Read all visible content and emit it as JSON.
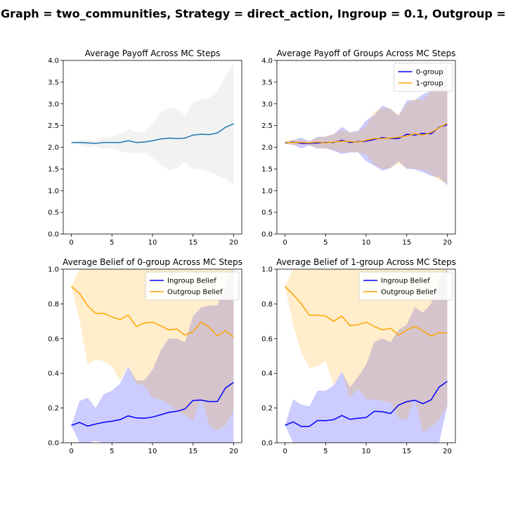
{
  "figure": {
    "suptitle": "Graph = two_communities, Strategy = direct_action, Ingroup = 0.1, Outgroup ="
  },
  "chart_data": [
    {
      "type": "line",
      "title": "Average Payoff Across MC Steps",
      "xlim": [
        -1,
        21
      ],
      "ylim": [
        0.0,
        4.0
      ],
      "xticks": [
        0,
        5,
        10,
        15,
        20
      ],
      "yticks": [
        "0.0",
        "0.5",
        "1.0",
        "1.5",
        "2.0",
        "2.5",
        "3.0",
        "3.5",
        "4.0"
      ],
      "x": [
        0,
        1,
        2,
        3,
        4,
        5,
        6,
        7,
        8,
        9,
        10,
        11,
        12,
        13,
        14,
        15,
        16,
        17,
        18,
        19,
        20
      ],
      "series": [
        {
          "name": "",
          "color": "#1f77b4",
          "band_color": "#bdbdbd",
          "values": [
            2.11,
            2.11,
            2.1,
            2.09,
            2.11,
            2.11,
            2.11,
            2.15,
            2.11,
            2.12,
            2.15,
            2.19,
            2.21,
            2.2,
            2.21,
            2.28,
            2.3,
            2.29,
            2.33,
            2.46,
            2.54
          ],
          "upper": [
            2.12,
            2.16,
            2.18,
            2.14,
            2.24,
            2.24,
            2.3,
            2.42,
            2.34,
            2.37,
            2.54,
            2.78,
            2.93,
            2.89,
            2.73,
            3.04,
            3.1,
            3.14,
            3.3,
            3.65,
            3.93
          ],
          "lower": [
            2.1,
            2.05,
            2.0,
            2.03,
            1.97,
            1.97,
            1.92,
            1.86,
            1.88,
            1.87,
            1.76,
            1.6,
            1.47,
            1.52,
            1.66,
            1.5,
            1.49,
            1.44,
            1.35,
            1.27,
            1.14
          ]
        }
      ],
      "legend": null
    },
    {
      "type": "line",
      "title": "Average Payoff of Groups Across MC Steps",
      "xlim": [
        -1,
        21
      ],
      "ylim": [
        0.0,
        4.0
      ],
      "xticks": [
        0,
        5,
        10,
        15,
        20
      ],
      "yticks": [
        "0.0",
        "0.5",
        "1.0",
        "1.5",
        "2.0",
        "2.5",
        "3.0",
        "3.5",
        "4.0"
      ],
      "x": [
        0,
        1,
        2,
        3,
        4,
        5,
        6,
        7,
        8,
        9,
        10,
        11,
        12,
        13,
        14,
        15,
        16,
        17,
        18,
        19,
        20
      ],
      "series": [
        {
          "name": "0-group",
          "color": "#0000ff",
          "band_color": "#0000ff",
          "values": [
            2.1,
            2.12,
            2.09,
            2.09,
            2.1,
            2.11,
            2.11,
            2.16,
            2.11,
            2.13,
            2.14,
            2.18,
            2.22,
            2.2,
            2.2,
            2.3,
            2.28,
            2.32,
            2.31,
            2.46,
            2.52
          ],
          "upper": [
            2.12,
            2.16,
            2.22,
            2.14,
            2.24,
            2.24,
            2.3,
            2.47,
            2.34,
            2.38,
            2.62,
            2.74,
            2.96,
            2.88,
            2.72,
            3.08,
            3.08,
            3.22,
            3.3,
            3.62,
            3.93
          ],
          "lower": [
            2.08,
            2.06,
            1.97,
            2.04,
            1.97,
            1.98,
            1.92,
            1.84,
            1.88,
            1.88,
            1.68,
            1.58,
            1.46,
            1.52,
            1.68,
            1.5,
            1.49,
            1.42,
            1.34,
            1.3,
            1.12
          ]
        },
        {
          "name": "1-group",
          "color": "#ffa500",
          "band_color": "#ffa500",
          "values": [
            2.11,
            2.11,
            2.11,
            2.1,
            2.12,
            2.1,
            2.12,
            2.14,
            2.13,
            2.12,
            2.16,
            2.2,
            2.2,
            2.21,
            2.23,
            2.26,
            2.31,
            2.28,
            2.34,
            2.45,
            2.55
          ],
          "upper": [
            2.14,
            2.18,
            2.16,
            2.14,
            2.22,
            2.26,
            2.3,
            2.4,
            2.34,
            2.36,
            2.48,
            2.82,
            2.9,
            2.9,
            2.74,
            3.0,
            3.12,
            3.08,
            3.3,
            3.66,
            3.92
          ],
          "lower": [
            2.08,
            2.04,
            2.06,
            2.05,
            1.98,
            1.96,
            1.94,
            1.88,
            1.9,
            1.88,
            1.84,
            1.6,
            1.5,
            1.52,
            1.62,
            1.52,
            1.5,
            1.48,
            1.38,
            1.24,
            1.16
          ]
        }
      ],
      "legend": "top-right"
    },
    {
      "type": "line",
      "title": "Average Belief of 0-group Across MC Steps",
      "xlim": [
        -1,
        21
      ],
      "ylim": [
        0.0,
        1.0
      ],
      "xticks": [
        0,
        5,
        10,
        15,
        20
      ],
      "yticks": [
        "0.0",
        "0.2",
        "0.4",
        "0.6",
        "0.8",
        "1.0"
      ],
      "x": [
        0,
        1,
        2,
        3,
        4,
        5,
        6,
        7,
        8,
        9,
        10,
        11,
        12,
        13,
        14,
        15,
        16,
        17,
        18,
        19,
        20
      ],
      "series": [
        {
          "name": "Ingroup Belief",
          "color": "#0000ff",
          "band_color": "#0000ff",
          "values": [
            0.1,
            0.117,
            0.096,
            0.108,
            0.118,
            0.124,
            0.133,
            0.155,
            0.143,
            0.141,
            0.148,
            0.161,
            0.175,
            0.181,
            0.195,
            0.244,
            0.246,
            0.237,
            0.238,
            0.316,
            0.348
          ],
          "upper": [
            0.1,
            0.24,
            0.26,
            0.2,
            0.28,
            0.3,
            0.34,
            0.44,
            0.36,
            0.36,
            0.42,
            0.53,
            0.6,
            0.6,
            0.58,
            0.73,
            0.78,
            0.79,
            0.79,
            0.92,
            1.0
          ],
          "lower": [
            0.1,
            0.0,
            0.0,
            0.01,
            0.0,
            0.0,
            0.0,
            0.0,
            0.0,
            0.0,
            0.0,
            0.0,
            0.0,
            0.0,
            0.0,
            0.0,
            0.0,
            0.0,
            0.0,
            0.0,
            0.0
          ]
        },
        {
          "name": "Outgroup Belief",
          "color": "#ffa500",
          "band_color": "#ffa500",
          "values": [
            0.9,
            0.86,
            0.79,
            0.745,
            0.745,
            0.725,
            0.71,
            0.735,
            0.67,
            0.69,
            0.695,
            0.675,
            0.65,
            0.655,
            0.62,
            0.64,
            0.695,
            0.665,
            0.615,
            0.645,
            0.61
          ],
          "upper": [
            0.9,
            1.0,
            1.0,
            1.0,
            1.0,
            1.0,
            1.0,
            1.0,
            1.0,
            1.0,
            1.0,
            1.0,
            1.0,
            1.0,
            1.0,
            1.0,
            1.0,
            1.0,
            1.0,
            1.0,
            1.0
          ],
          "lower": [
            0.9,
            0.71,
            0.45,
            0.48,
            0.47,
            0.44,
            0.36,
            0.44,
            0.34,
            0.33,
            0.26,
            0.25,
            0.22,
            0.18,
            0.16,
            0.13,
            0.26,
            0.1,
            0.07,
            0.1,
            0.18
          ]
        }
      ],
      "legend": "top-right"
    },
    {
      "type": "line",
      "title": "Average Belief of 1-group Across MC Steps",
      "xlim": [
        -1,
        21
      ],
      "ylim": [
        0.0,
        1.0
      ],
      "xticks": [
        0,
        5,
        10,
        15,
        20
      ],
      "yticks": [
        "0.0",
        "0.2",
        "0.4",
        "0.6",
        "0.8",
        "1.0"
      ],
      "x": [
        0,
        1,
        2,
        3,
        4,
        5,
        6,
        7,
        8,
        9,
        10,
        11,
        12,
        13,
        14,
        15,
        16,
        17,
        18,
        19,
        20
      ],
      "series": [
        {
          "name": "Ingroup Belief",
          "color": "#0000ff",
          "band_color": "#0000ff",
          "values": [
            0.1,
            0.12,
            0.094,
            0.094,
            0.128,
            0.127,
            0.133,
            0.157,
            0.135,
            0.141,
            0.145,
            0.181,
            0.179,
            0.168,
            0.217,
            0.237,
            0.245,
            0.225,
            0.247,
            0.321,
            0.354
          ],
          "upper": [
            0.1,
            0.25,
            0.22,
            0.21,
            0.3,
            0.3,
            0.33,
            0.41,
            0.32,
            0.38,
            0.45,
            0.58,
            0.6,
            0.58,
            0.65,
            0.68,
            0.78,
            0.75,
            0.8,
            0.95,
            1.0
          ],
          "lower": [
            0.1,
            0.0,
            0.0,
            0.0,
            0.0,
            0.0,
            0.0,
            0.0,
            0.0,
            0.0,
            0.0,
            0.0,
            0.0,
            0.0,
            0.0,
            0.0,
            0.0,
            0.0,
            0.0,
            0.0,
            0.21
          ]
        },
        {
          "name": "Outgroup Belief",
          "color": "#ffa500",
          "band_color": "#ffa500",
          "values": [
            0.9,
            0.855,
            0.8,
            0.735,
            0.735,
            0.73,
            0.7,
            0.73,
            0.675,
            0.68,
            0.695,
            0.67,
            0.65,
            0.66,
            0.62,
            0.65,
            0.67,
            0.645,
            0.615,
            0.635,
            0.63
          ],
          "upper": [
            0.9,
            1.0,
            1.0,
            1.0,
            1.0,
            1.0,
            1.0,
            1.0,
            1.0,
            1.0,
            1.0,
            1.0,
            1.0,
            1.0,
            1.0,
            1.0,
            1.0,
            1.0,
            1.0,
            1.0,
            1.0
          ],
          "lower": [
            0.9,
            0.68,
            0.52,
            0.43,
            0.44,
            0.47,
            0.33,
            0.41,
            0.26,
            0.31,
            0.25,
            0.25,
            0.24,
            0.23,
            0.14,
            0.13,
            0.26,
            0.06,
            0.09,
            0.13,
            0.22
          ]
        }
      ],
      "legend": "top-right"
    }
  ]
}
